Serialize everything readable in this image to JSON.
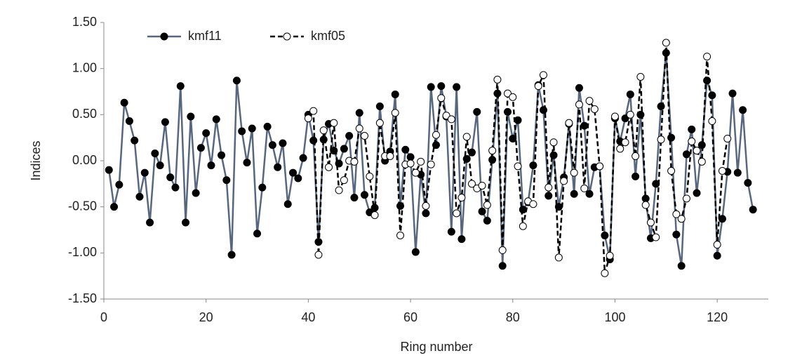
{
  "chart_data": {
    "type": "line",
    "xlabel": "Ring number",
    "ylabel": "Indices",
    "xlim": [
      0,
      130
    ],
    "xticks": [
      0,
      20,
      40,
      60,
      80,
      100,
      120
    ],
    "ylim": [
      -1.5,
      1.5
    ],
    "yticks": [
      {
        "value": -1.5,
        "label": "-1.50"
      },
      {
        "value": -1,
        "label": "-1.00"
      },
      {
        "value": -0.5,
        "label": "-0.50"
      },
      {
        "value": 0,
        "label": "0.00"
      },
      {
        "value": 0.5,
        "label": "0.50"
      },
      {
        "value": 1,
        "label": "1.00"
      },
      {
        "value": 1.5,
        "label": "1.50"
      }
    ],
    "grid": false,
    "legend": "top-left",
    "series": [
      {
        "name": "kmf11",
        "color": "#56677f",
        "marker_fill": "#000000",
        "line_style": "solid",
        "x": [
          1,
          2,
          3,
          4,
          5,
          6,
          7,
          8,
          9,
          10,
          11,
          12,
          13,
          14,
          15,
          16,
          17,
          18,
          19,
          20,
          21,
          22,
          23,
          24,
          25,
          26,
          27,
          28,
          29,
          30,
          31,
          32,
          33,
          34,
          35,
          36,
          37,
          38,
          39,
          40,
          41,
          42,
          43,
          44,
          45,
          46,
          47,
          48,
          49,
          50,
          51,
          52,
          53,
          54,
          55,
          56,
          57,
          58,
          59,
          60,
          61,
          62,
          63,
          64,
          65,
          66,
          67,
          68,
          69,
          70,
          71,
          72,
          73,
          74,
          75,
          76,
          77,
          78,
          79,
          80,
          81,
          82,
          83,
          84,
          85,
          86,
          87,
          88,
          89,
          90,
          91,
          92,
          93,
          94,
          95,
          96,
          97,
          98,
          99,
          100,
          101,
          102,
          103,
          104,
          105,
          106,
          107,
          108,
          109,
          110,
          111,
          112,
          113,
          114,
          115,
          116,
          117,
          118,
          119,
          120,
          121,
          122,
          123,
          124,
          125,
          126,
          127
        ],
        "values": [
          -0.1,
          -0.5,
          -0.26,
          0.63,
          0.43,
          0.22,
          -0.39,
          -0.13,
          -0.67,
          0.08,
          -0.05,
          0.42,
          -0.18,
          -0.29,
          0.81,
          -0.67,
          0.48,
          -0.35,
          0.14,
          0.3,
          -0.05,
          0.45,
          0.06,
          -0.21,
          -1.02,
          0.87,
          0.32,
          -0.02,
          0.35,
          -0.79,
          -0.29,
          0.37,
          0.17,
          -0.07,
          0.19,
          -0.47,
          -0.13,
          -0.19,
          0.03,
          0.5,
          0.22,
          -0.88,
          0.23,
          0.4,
          0.11,
          -0.03,
          0.13,
          0.27,
          -0.4,
          0.52,
          -0.37,
          -0.56,
          -0.51,
          0.59,
          0.0,
          0.1,
          0.72,
          -0.49,
          0.12,
          0.04,
          -0.99,
          -0.15,
          -0.57,
          0.8,
          0.17,
          0.81,
          0.48,
          -0.77,
          0.8,
          -0.85,
          0.02,
          0.09,
          0.53,
          -0.55,
          -0.65,
          0.01,
          0.73,
          -1.14,
          0.53,
          0.24,
          0.44,
          -0.53,
          -0.45,
          -0.05,
          0.82,
          0.55,
          -0.38,
          0.06,
          -0.5,
          -0.18,
          0.4,
          -0.36,
          0.79,
          0.38,
          -0.36,
          -0.07,
          -0.06,
          -0.81,
          -1.07,
          0.46,
          0.21,
          0.46,
          0.72,
          -0.17,
          0.5,
          -0.41,
          -0.84,
          -0.25,
          0.59,
          1.17,
          0.25,
          -0.8,
          -1.14,
          0.07,
          0.34,
          -0.35,
          0.17,
          0.87,
          0.71,
          -1.03,
          -0.63,
          -0.12,
          0.73,
          -0.13,
          0.55,
          -0.24,
          -0.53
        ]
      },
      {
        "name": "kmf05",
        "color": "#000000",
        "marker_fill": "#ffffff",
        "line_style": "dashed",
        "x": [
          40,
          41,
          42,
          43,
          44,
          45,
          46,
          47,
          48,
          49,
          50,
          51,
          52,
          53,
          54,
          55,
          56,
          57,
          58,
          59,
          60,
          61,
          62,
          63,
          64,
          65,
          66,
          67,
          68,
          69,
          70,
          71,
          72,
          73,
          74,
          75,
          76,
          77,
          78,
          79,
          80,
          81,
          82,
          83,
          84,
          85,
          86,
          87,
          88,
          89,
          90,
          91,
          92,
          93,
          94,
          95,
          96,
          97,
          98,
          99,
          100,
          101,
          102,
          103,
          104,
          105,
          106,
          107,
          108,
          109,
          110,
          111,
          112,
          113,
          114,
          115,
          116,
          117,
          118,
          119,
          120,
          121,
          122
        ],
        "values": [
          0.46,
          0.54,
          -1.02,
          0.33,
          -0.07,
          0.41,
          -0.32,
          -0.21,
          0.0,
          -0.01,
          0.35,
          0.27,
          -0.17,
          -0.59,
          0.41,
          0.05,
          0.05,
          0.52,
          -0.81,
          -0.04,
          -0.03,
          -0.13,
          -0.01,
          -0.49,
          -0.04,
          0.28,
          0.68,
          0.49,
          0.45,
          -0.57,
          -0.4,
          0.26,
          -0.25,
          -0.3,
          -0.27,
          -0.48,
          0.11,
          0.88,
          -0.97,
          0.73,
          0.69,
          -0.06,
          -0.71,
          -0.44,
          -0.47,
          0.81,
          0.93,
          -0.29,
          0.2,
          -1.05,
          -0.22,
          0.41,
          -0.13,
          0.61,
          -0.3,
          0.65,
          0.56,
          -0.06,
          -1.22,
          -1.03,
          0.48,
          0.13,
          0.2,
          0.5,
          0.05,
          0.91,
          -0.48,
          -0.67,
          -0.83,
          0.23,
          1.28,
          -0.11,
          -0.58,
          -0.63,
          -0.41,
          0.21,
          0.11,
          -0.01,
          1.13,
          0.43,
          -0.91,
          -0.11,
          0.24
        ]
      }
    ]
  }
}
